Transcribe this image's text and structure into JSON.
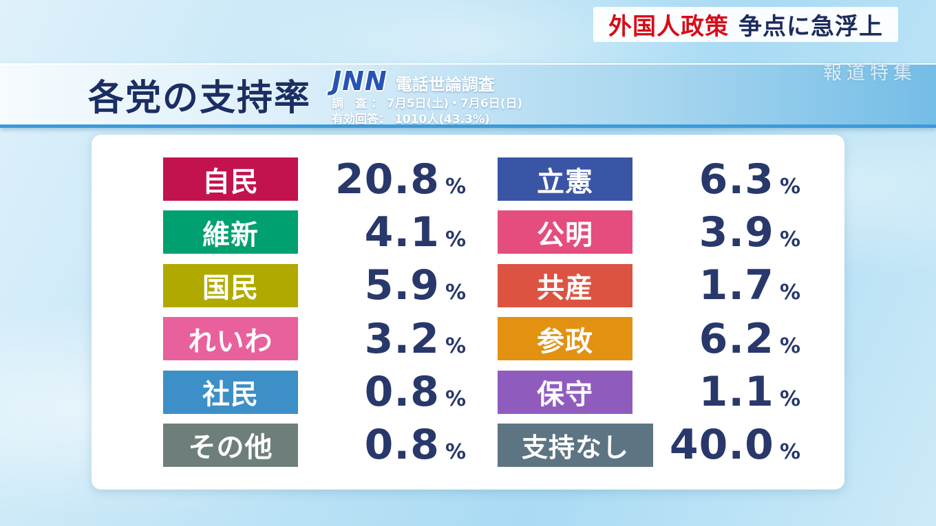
{
  "top_banner": {
    "highlight": "外国人政策",
    "rest": "争点に急浮上"
  },
  "watermark": "報道特集",
  "header": {
    "title": "各党の支持率",
    "logo": "JNN",
    "survey_type": "電話世論調査",
    "survey_date_label": "調　査 ：",
    "survey_date": "7月5日(土)・7月6日(日)",
    "response_label": "有効回答：",
    "response": "1010人(43.3%)"
  },
  "chart_data": {
    "type": "table",
    "title": "各党の支持率",
    "unit": "%",
    "categories": [
      "自民",
      "維新",
      "国民",
      "れいわ",
      "社民",
      "その他",
      "立憲",
      "公明",
      "共産",
      "参政",
      "保守",
      "支持なし"
    ],
    "values": [
      20.8,
      4.1,
      5.9,
      3.2,
      0.8,
      0.8,
      6.3,
      3.9,
      1.7,
      6.2,
      1.1,
      40.0
    ],
    "columns": {
      "left": [
        {
          "name": "自民",
          "value": "20.8",
          "color": "#c3134e"
        },
        {
          "name": "維新",
          "value": "4.1",
          "color": "#00a070"
        },
        {
          "name": "国民",
          "value": "5.9",
          "color": "#b0aa00"
        },
        {
          "name": "れいわ",
          "value": "3.2",
          "color": "#e8619c"
        },
        {
          "name": "社民",
          "value": "0.8",
          "color": "#3c8fc7"
        },
        {
          "name": "その他",
          "value": "0.8",
          "color": "#6e7f7b"
        }
      ],
      "right": [
        {
          "name": "立憲",
          "value": "6.3",
          "color": "#3a55a5"
        },
        {
          "name": "公明",
          "value": "3.9",
          "color": "#e44d7d"
        },
        {
          "name": "共産",
          "value": "1.7",
          "color": "#dc5441"
        },
        {
          "name": "参政",
          "value": "6.2",
          "color": "#e39110"
        },
        {
          "name": "保守",
          "value": "1.1",
          "color": "#8f5cbe"
        },
        {
          "name": "支持なし",
          "value": "40.0",
          "color": "#5d7482",
          "wide": true
        }
      ]
    }
  }
}
